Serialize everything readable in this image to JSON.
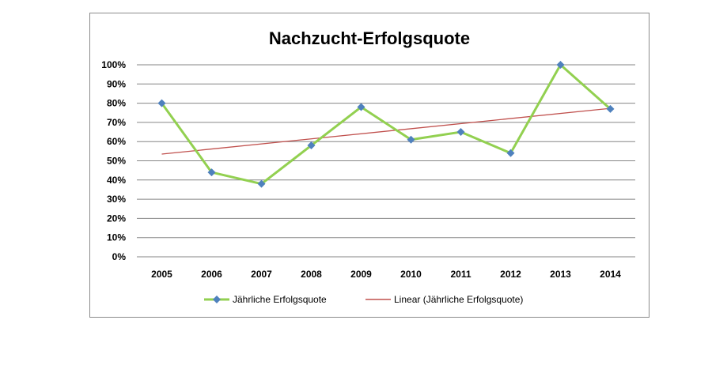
{
  "chart_data": {
    "type": "line",
    "title": "Nachzucht-Erfolgsquote",
    "xlabel": "",
    "ylabel": "",
    "categories": [
      "2005",
      "2006",
      "2007",
      "2008",
      "2009",
      "2010",
      "2011",
      "2012",
      "2013",
      "2014"
    ],
    "series": [
      {
        "name": "Jährliche Erfolgsquote",
        "values": [
          80,
          44,
          38,
          58,
          78,
          61,
          65,
          54,
          100,
          77
        ],
        "color": "#92d050",
        "marker_color": "#4f81bd",
        "marker": "diamond"
      },
      {
        "name": "Linear (Jährliche Erfolgsquote)",
        "type": "trendline",
        "values": [
          53.5,
          56.1,
          58.8,
          61.4,
          64.1,
          66.7,
          69.4,
          72.0,
          74.7,
          77.3
        ],
        "color": "#c0504d"
      }
    ],
    "yticks": [
      "0%",
      "10%",
      "20%",
      "30%",
      "40%",
      "50%",
      "60%",
      "70%",
      "80%",
      "90%",
      "100%"
    ],
    "ylim": [
      0,
      100
    ],
    "grid": true,
    "legend_position": "bottom"
  }
}
